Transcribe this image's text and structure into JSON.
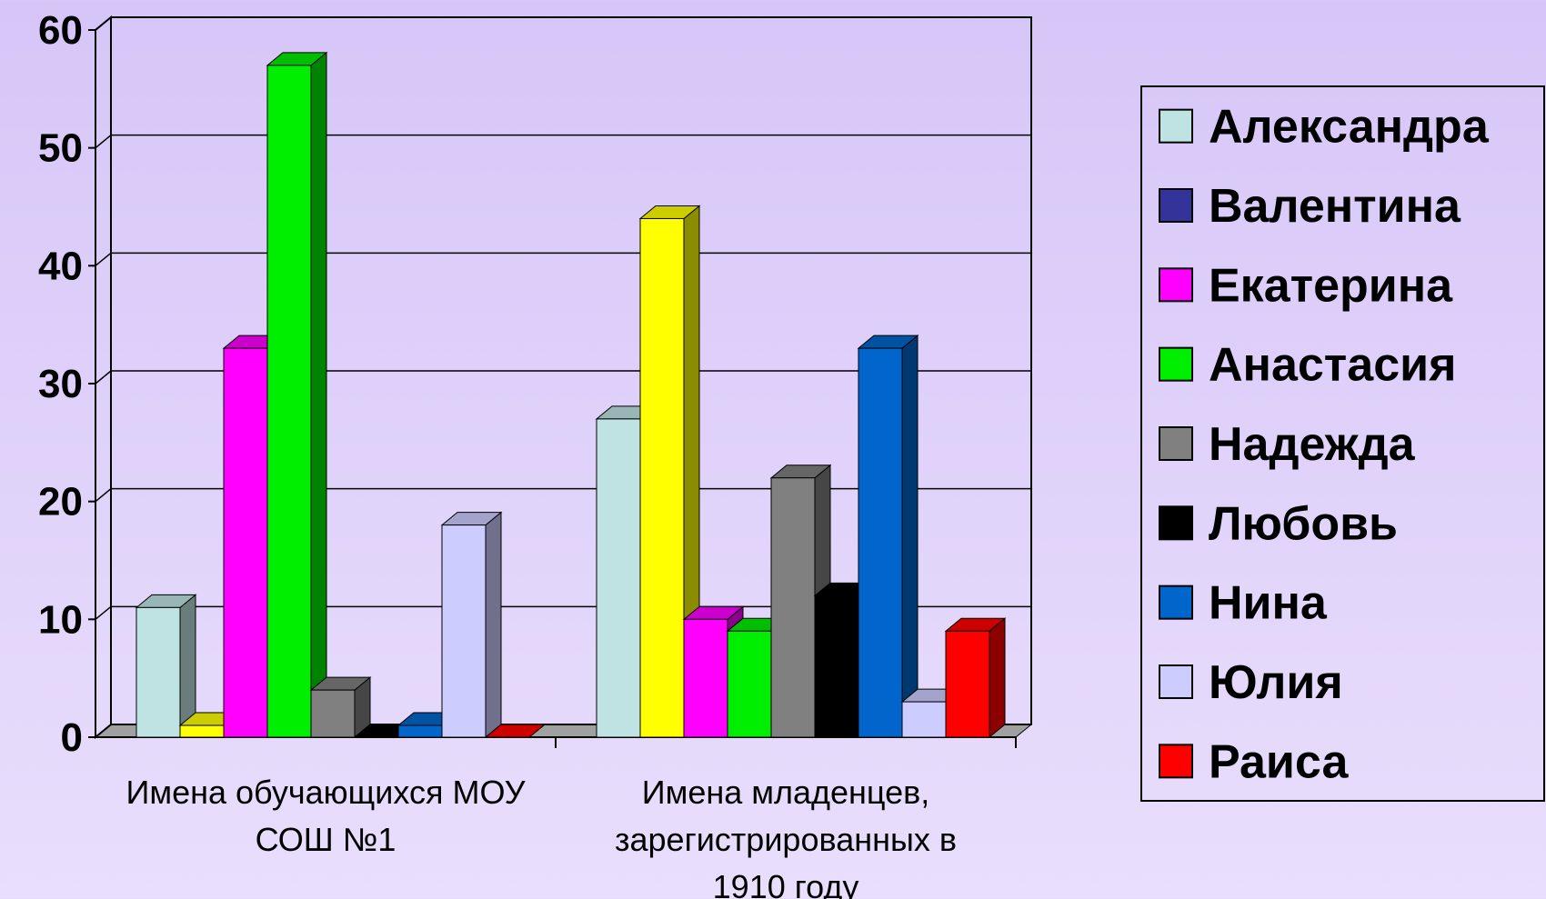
{
  "chart_data": {
    "type": "bar3d",
    "categories": [
      "Имена обучающихся МОУ СОШ №1",
      "Имена младенцев, зарегистрированных в 1910 году"
    ],
    "series": [
      {
        "name": "Александра",
        "color": "#bfe3e3",
        "legend_color": "#bfe3e3",
        "values": [
          11,
          27
        ]
      },
      {
        "name": "Валентина",
        "color": "#ffff00",
        "legend_color": "#333399",
        "values": [
          1,
          44
        ]
      },
      {
        "name": "Екатерина",
        "color": "#ff00ff",
        "legend_color": "#ff00ff",
        "values": [
          33,
          10
        ]
      },
      {
        "name": "Анастасия",
        "color": "#00ee00",
        "legend_color": "#00ee00",
        "values": [
          57,
          9
        ]
      },
      {
        "name": "Надежда",
        "color": "#808080",
        "legend_color": "#808080",
        "values": [
          4,
          22
        ]
      },
      {
        "name": "Любовь",
        "color": "#000000",
        "legend_color": "#000000",
        "values": [
          0,
          12
        ]
      },
      {
        "name": "Нина",
        "color": "#0066cc",
        "legend_color": "#0066cc",
        "values": [
          1,
          33
        ]
      },
      {
        "name": "Юлия",
        "color": "#ccccff",
        "legend_color": "#ccccff",
        "values": [
          18,
          3
        ]
      },
      {
        "name": "Раиса",
        "color": "#ff0000",
        "legend_color": "#ff0000",
        "values": [
          0,
          9
        ]
      }
    ],
    "ylim": [
      0,
      60
    ],
    "yticks": [
      0,
      10,
      20,
      30,
      40,
      50,
      60
    ],
    "grid": true,
    "legend": "right"
  }
}
